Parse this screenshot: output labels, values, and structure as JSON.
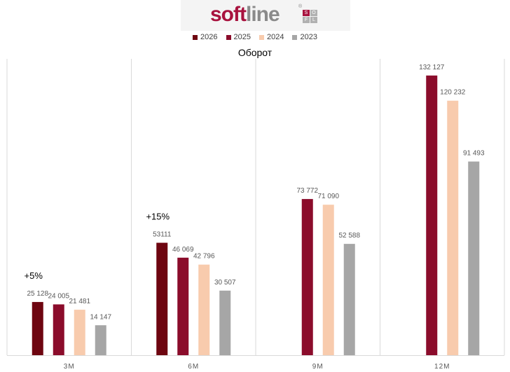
{
  "logo": {
    "main": "soft",
    "rest": "line",
    "reg": "®",
    "cells": [
      "S",
      "O",
      "F",
      "L"
    ]
  },
  "chart_data": {
    "type": "bar",
    "title": "Оборот",
    "categories": [
      "3M",
      "6M",
      "9M",
      "12M"
    ],
    "series": [
      {
        "name": "2026",
        "color": "#6e0510",
        "values": [
          25128,
          53111,
          null,
          null
        ],
        "labels": [
          "25 128",
          "53111",
          "",
          ""
        ]
      },
      {
        "name": "2025",
        "color": "#8b0c2b",
        "values": [
          24005,
          46069,
          73772,
          132127
        ],
        "labels": [
          "24 005",
          "46 069",
          "73 772",
          "132 127"
        ]
      },
      {
        "name": "2024",
        "color": "#f8cbad",
        "values": [
          21481,
          42796,
          71090,
          120232
        ],
        "labels": [
          "21 481",
          "42 796",
          "71 090",
          "120 232"
        ]
      },
      {
        "name": "2023",
        "color": "#a6a6a6",
        "values": [
          14147,
          30507,
          52588,
          91493
        ],
        "labels": [
          "14 147",
          "30 507",
          "52 588",
          "91 493"
        ]
      }
    ],
    "annotations": [
      {
        "category_index": 0,
        "text": "+5%"
      },
      {
        "category_index": 1,
        "text": "+15%"
      }
    ],
    "ylim": [
      0,
      140000
    ],
    "grid": false,
    "legend": "top-center",
    "xlabel": "",
    "ylabel": ""
  }
}
